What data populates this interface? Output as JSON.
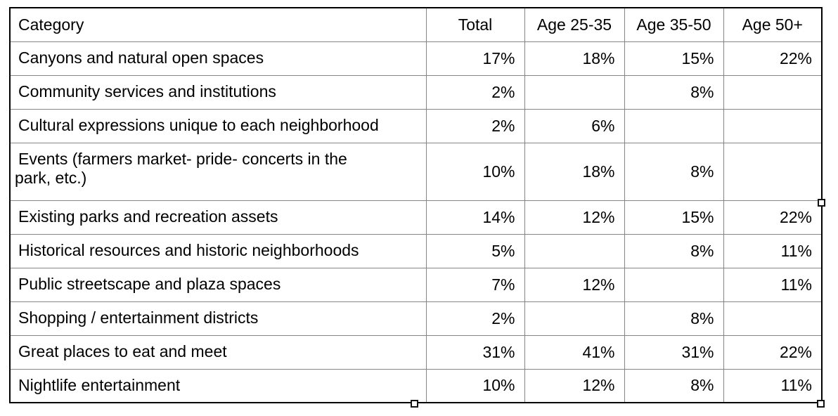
{
  "table": {
    "columns": [
      "Category",
      "Total",
      "Age 25-35",
      "Age 35-50",
      "Age 50+"
    ],
    "rows": [
      [
        "Canyons and natural open spaces",
        "17%",
        "18%",
        "15%",
        "22%"
      ],
      [
        "Community services and institutions",
        "2%",
        "",
        "8%",
        ""
      ],
      [
        "Cultural expressions unique to each neighborhood",
        "2%",
        "6%",
        "",
        ""
      ],
      [
        "Events (farmers market- pride- concerts in the\npark, etc.)",
        "10%",
        "18%",
        "8%",
        ""
      ],
      [
        "Existing parks and recreation assets",
        "14%",
        "12%",
        "15%",
        "22%"
      ],
      [
        "Historical resources and historic neighborhoods",
        "5%",
        "",
        "8%",
        "11%"
      ],
      [
        "Public streetscape and plaza spaces",
        "7%",
        "12%",
        "",
        "11%"
      ],
      [
        "Shopping / entertainment districts",
        "2%",
        "",
        "8%",
        ""
      ],
      [
        "Great places to eat and meet",
        "31%",
        "41%",
        "31%",
        "22%"
      ],
      [
        "Nightlife entertainment",
        "10%",
        "12%",
        "8%",
        "11%"
      ]
    ]
  },
  "selection": {
    "handles": [
      "resize-handle-right-middle",
      "resize-handle-bottom-center",
      "resize-handle-bottom-right"
    ]
  },
  "colors": {
    "background": "#ffffff",
    "text": "#000000",
    "border_outer": "#000000",
    "border_inner": "#858585",
    "handle_fill": "#ffffff",
    "handle_border": "#111111"
  }
}
